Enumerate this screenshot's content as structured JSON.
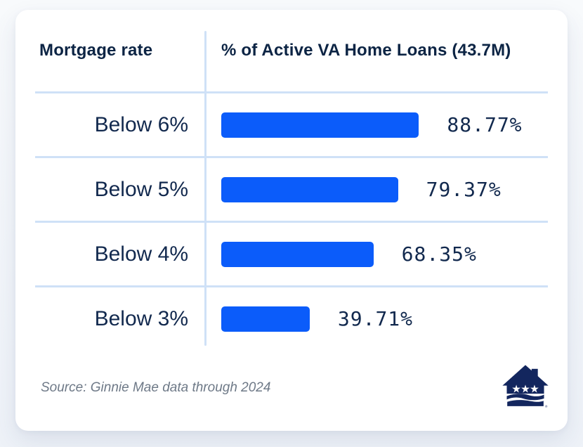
{
  "colors": {
    "bar_blue": "#0b5cfa",
    "navy_text": "#12294e",
    "divider_blue": "#cfe1f7",
    "source_gray": "#6e7987",
    "logo_navy": "#13265e"
  },
  "chart_data": {
    "type": "bar",
    "orientation": "horizontal",
    "title": "% of Active VA Home Loans (43.7M)",
    "col1_header": "Mortgage rate",
    "col2_header": "% of Active VA Home Loans (43.7M)",
    "categories": [
      "Below 6%",
      "Below 5%",
      "Below 4%",
      "Below 3%"
    ],
    "values": [
      88.77,
      79.37,
      68.35,
      39.71
    ],
    "xlim": [
      0,
      100
    ],
    "grid": "row-dividers-only",
    "legend": "none",
    "source": "Source: Ginnie Mae data through 2024",
    "rows": [
      {
        "label": "Below 6%",
        "value": 88.77,
        "value_label": "88.77%"
      },
      {
        "label": "Below 5%",
        "value": 79.37,
        "value_label": "79.37%"
      },
      {
        "label": "Below 4%",
        "value": 68.35,
        "value_label": "68.35%"
      },
      {
        "label": "Below 3%",
        "value": 39.71,
        "value_label": "39.71%"
      }
    ]
  },
  "logo": {
    "trademark": "®"
  }
}
